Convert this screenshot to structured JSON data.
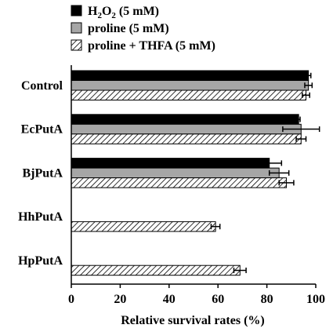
{
  "chart_data": {
    "type": "bar",
    "orientation": "horizontal",
    "categories": [
      "Control",
      "EcPutA",
      "BjPutA",
      "HhPutA",
      "HpPutA"
    ],
    "series": [
      {
        "name": "H2O2 (5 mM)",
        "legend": {
          "pre": "H",
          "sub1": "2",
          "mid": "O",
          "sub2": "2",
          "post": " (5 mM)"
        },
        "pattern": "solid-black",
        "values": [
          97,
          93,
          81,
          0,
          0
        ],
        "errors": [
          1.0,
          0.6,
          5.0,
          0,
          0
        ]
      },
      {
        "name": "proline (5 mM)",
        "legend": {
          "pre": "proline (5 mM)",
          "sub1": "",
          "mid": "",
          "sub2": "",
          "post": ""
        },
        "pattern": "solid-gray",
        "values": [
          97,
          94,
          85,
          0,
          0
        ],
        "errors": [
          1.5,
          7.5,
          4.0,
          0,
          0
        ]
      },
      {
        "name": "proline + THFA (5 mM)",
        "legend": {
          "pre": "proline + THFA (5 mM)",
          "sub1": "",
          "mid": "",
          "sub2": "",
          "post": ""
        },
        "pattern": "hatched",
        "values": [
          96,
          94,
          88,
          59,
          69
        ],
        "errors": [
          1.5,
          2.0,
          3.0,
          1.8,
          2.5
        ]
      }
    ],
    "xlabel": "Relative survival rates (%)",
    "xlim": [
      0,
      100
    ],
    "xticks": [
      "0",
      "20",
      "40",
      "60",
      "80",
      "100"
    ],
    "legend_position": "top",
    "colors": {
      "black": "#000000",
      "gray": "#a6a6a6",
      "hatch_bg": "#ffffff",
      "hatch_line": "#000000"
    }
  }
}
